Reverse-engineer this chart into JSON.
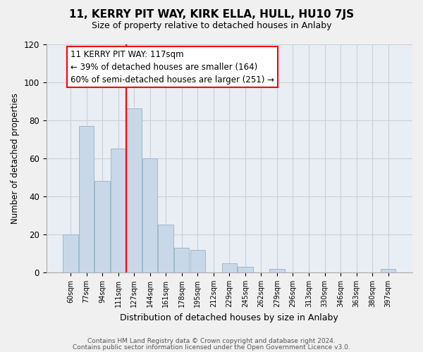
{
  "title": "11, KERRY PIT WAY, KIRK ELLA, HULL, HU10 7JS",
  "subtitle": "Size of property relative to detached houses in Anlaby",
  "xlabel": "Distribution of detached houses by size in Anlaby",
  "ylabel": "Number of detached properties",
  "bar_color": "#c8d8e8",
  "bar_edge_color": "#a0b8cc",
  "categories": [
    "60sqm",
    "77sqm",
    "94sqm",
    "111sqm",
    "127sqm",
    "144sqm",
    "161sqm",
    "178sqm",
    "195sqm",
    "212sqm",
    "229sqm",
    "245sqm",
    "262sqm",
    "279sqm",
    "296sqm",
    "313sqm",
    "330sqm",
    "346sqm",
    "363sqm",
    "380sqm",
    "397sqm"
  ],
  "values": [
    20,
    77,
    48,
    65,
    86,
    60,
    25,
    13,
    12,
    0,
    5,
    3,
    0,
    2,
    0,
    0,
    0,
    0,
    0,
    0,
    2
  ],
  "ylim": [
    0,
    120
  ],
  "yticks": [
    0,
    20,
    40,
    60,
    80,
    100,
    120
  ],
  "red_line_index": 3.5,
  "ann_line1": "11 KERRY PIT WAY: 117sqm",
  "ann_line2": "← 39% of detached houses are smaller (164)",
  "ann_line3": "60% of semi-detached houses are larger (251) →",
  "footer_line1": "Contains HM Land Registry data © Crown copyright and database right 2024.",
  "footer_line2": "Contains public sector information licensed under the Open Government Licence v3.0.",
  "background_color": "#f0f0f0",
  "plot_bg_color": "#e8eef4",
  "grid_color": "#c8d0d8"
}
